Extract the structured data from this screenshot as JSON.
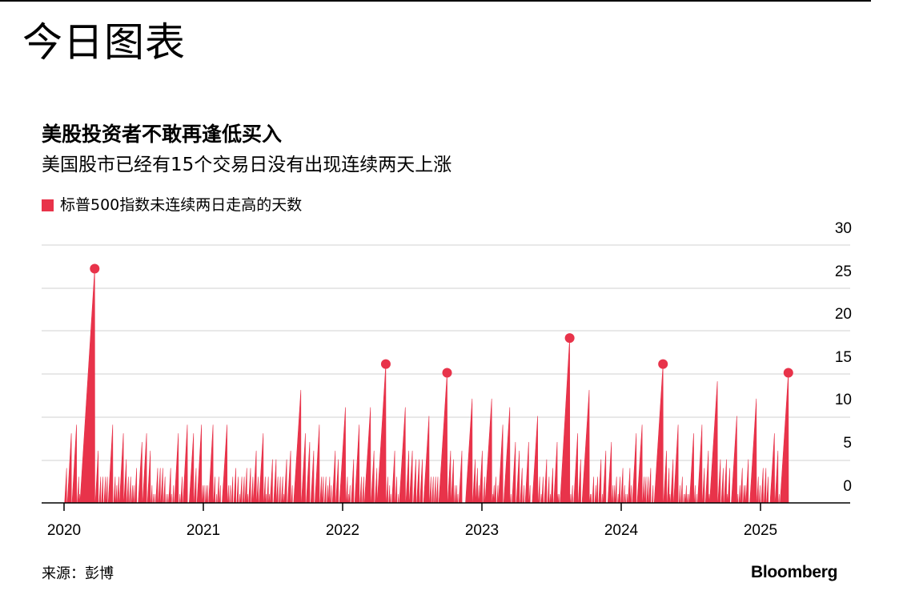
{
  "header": {
    "title": "今日图表"
  },
  "chart_data": {
    "type": "area",
    "title": "美股投资者不敢再逢低买入",
    "subtitle": "美国股市已经有15个交易日没有出现连续两天上涨",
    "legend": [
      {
        "label": "标普500指数未连续两日走高的天数",
        "color": "#e8334a"
      }
    ],
    "legend_placement": "top-left",
    "xlabel": "",
    "ylabel": "",
    "x_ticks": [
      "2020",
      "2021",
      "2022",
      "2023",
      "2024",
      "2025"
    ],
    "x_range": [
      2020.0,
      2025.65
    ],
    "y_ticks": [
      "0",
      "5",
      "10",
      "15",
      "20",
      "25",
      "30"
    ],
    "ylim": [
      0,
      30
    ],
    "grid": "horizontal",
    "series": [
      {
        "color": "#e8334a",
        "peaks": [
          {
            "x": 2020.22,
            "y": 27
          },
          {
            "x": 2020.56,
            "y": 7
          },
          {
            "x": 2020.93,
            "y": 8
          },
          {
            "x": 2021.17,
            "y": 9
          },
          {
            "x": 2021.43,
            "y": 8
          },
          {
            "x": 2021.7,
            "y": 13
          },
          {
            "x": 2022.02,
            "y": 11
          },
          {
            "x": 2022.2,
            "y": 11
          },
          {
            "x": 2022.31,
            "y": 16
          },
          {
            "x": 2022.45,
            "y": 11
          },
          {
            "x": 2022.62,
            "y": 10
          },
          {
            "x": 2022.75,
            "y": 15
          },
          {
            "x": 2022.93,
            "y": 12
          },
          {
            "x": 2023.07,
            "y": 12
          },
          {
            "x": 2023.2,
            "y": 11
          },
          {
            "x": 2023.4,
            "y": 10
          },
          {
            "x": 2023.63,
            "y": 19
          },
          {
            "x": 2023.77,
            "y": 13
          },
          {
            "x": 2023.93,
            "y": 7
          },
          {
            "x": 2024.15,
            "y": 9
          },
          {
            "x": 2024.3,
            "y": 16
          },
          {
            "x": 2024.52,
            "y": 8
          },
          {
            "x": 2024.69,
            "y": 14
          },
          {
            "x": 2024.83,
            "y": 10
          },
          {
            "x": 2024.97,
            "y": 12
          },
          {
            "x": 2025.1,
            "y": 8
          },
          {
            "x": 2025.2,
            "y": 15
          }
        ],
        "highlighted_points": [
          {
            "x": 2020.22,
            "y": 27
          },
          {
            "x": 2022.31,
            "y": 16
          },
          {
            "x": 2022.75,
            "y": 15
          },
          {
            "x": 2023.63,
            "y": 19
          },
          {
            "x": 2024.3,
            "y": 16
          },
          {
            "x": 2025.2,
            "y": 15
          }
        ]
      }
    ]
  },
  "footer": {
    "source": "来源：彭博",
    "brand": "Bloomberg"
  }
}
